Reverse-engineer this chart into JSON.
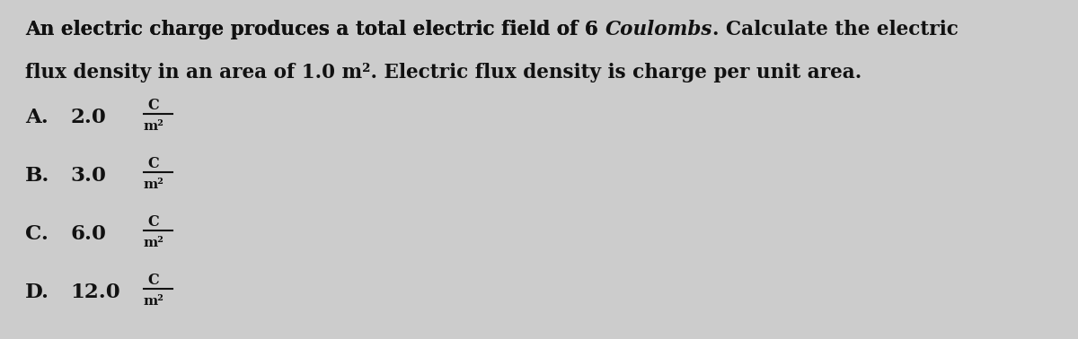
{
  "background_color": "#cccccc",
  "text_color": "#111111",
  "line1_part1": "An electric charge produces a total electric field of 6 ",
  "line1_italic": "Coulombs",
  "line1_part2": ". Calculate the electric",
  "line2": "flux density in an area of 1.0 m². Electric flux density is charge per unit area.",
  "options": [
    {
      "label": "A.",
      "value": "2.0"
    },
    {
      "label": "B.",
      "value": "3.0"
    },
    {
      "label": "C.",
      "value": "6.0"
    },
    {
      "label": "D.",
      "value": "12.0"
    }
  ],
  "unit_num": "C",
  "unit_den": "m²",
  "fig_width": 12.0,
  "fig_height": 3.78,
  "dpi": 100,
  "fontsize_main": 15.5,
  "fontsize_opt": 16.5,
  "fontsize_unit": 11.5
}
